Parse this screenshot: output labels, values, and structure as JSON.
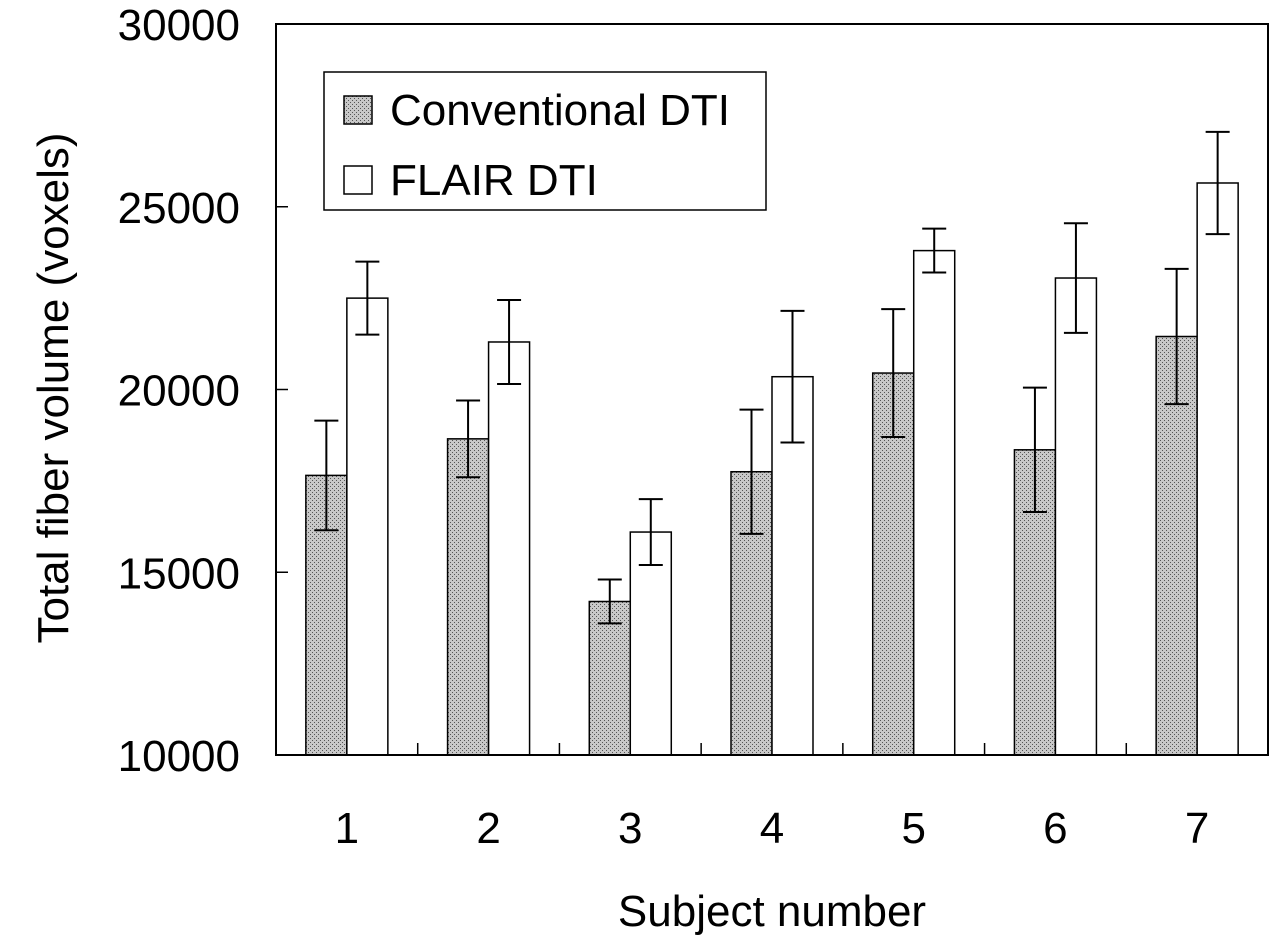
{
  "chart_data": {
    "type": "bar",
    "title": "",
    "xlabel": "Subject number",
    "ylabel": "Total fiber volume (voxels)",
    "ylim": [
      10000,
      30000
    ],
    "yticks": [
      "10000",
      "15000",
      "20000",
      "25000",
      "30000"
    ],
    "categories": [
      "1",
      "2",
      "3",
      "4",
      "5",
      "6",
      "7"
    ],
    "legend_position": "top-left",
    "grid": false,
    "series": [
      {
        "name": "Conventional DTI",
        "fill": "hatched-gray",
        "values": [
          17650,
          18650,
          14200,
          17750,
          20450,
          18350,
          21450
        ],
        "error": [
          1500,
          1050,
          600,
          1700,
          1750,
          1700,
          1850
        ]
      },
      {
        "name": "FLAIR DTI",
        "fill": "white",
        "values": [
          22500,
          21300,
          16100,
          20350,
          23800,
          23050,
          25650
        ],
        "error": [
          1000,
          1150,
          900,
          1800,
          600,
          1500,
          1400
        ]
      }
    ]
  }
}
